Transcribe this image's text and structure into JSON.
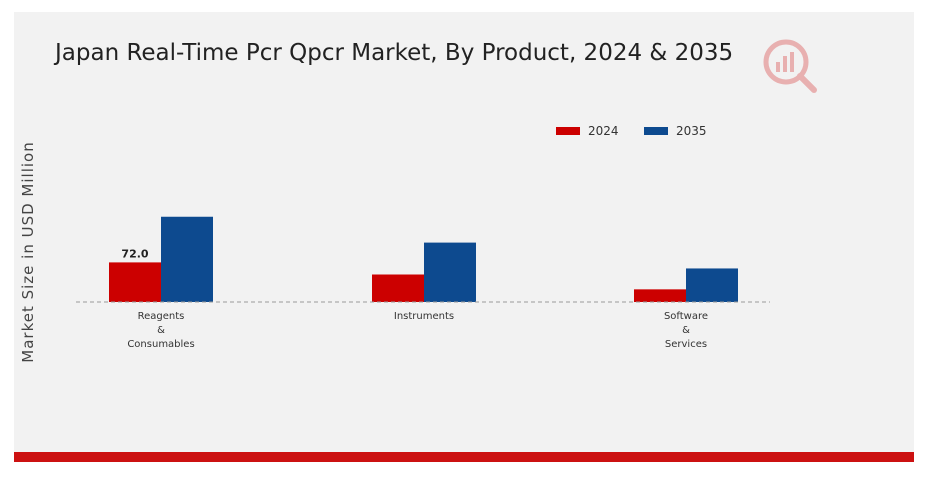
{
  "colors": {
    "series_2024": "#cc0000",
    "series_2035": "#0d4a8f",
    "baseline": "#999999",
    "accent_bar": "#cc1111"
  },
  "chart_data": {
    "type": "bar",
    "title": "Japan Real-Time Pcr Qpcr Market, By Product, 2024 & 2035",
    "xlabel": "",
    "ylabel": "Market Size in USD Million",
    "categories": [
      "Reagents & Consumables",
      "Instruments",
      "Software & Services"
    ],
    "category_lines": [
      [
        "Reagents",
        "&",
        "Consumables"
      ],
      [
        "Instruments"
      ],
      [
        "Software",
        "&",
        "Services"
      ]
    ],
    "series": [
      {
        "name": "2024",
        "values": [
          72.0,
          50.0,
          23.0
        ],
        "data_labels": [
          "72.0",
          "",
          ""
        ]
      },
      {
        "name": "2035",
        "values": [
          155.0,
          108.0,
          61.0
        ],
        "data_labels": [
          "",
          "",
          ""
        ]
      }
    ],
    "ylim": [
      0,
      180
    ],
    "grid": false,
    "legend_position": "top-right"
  }
}
